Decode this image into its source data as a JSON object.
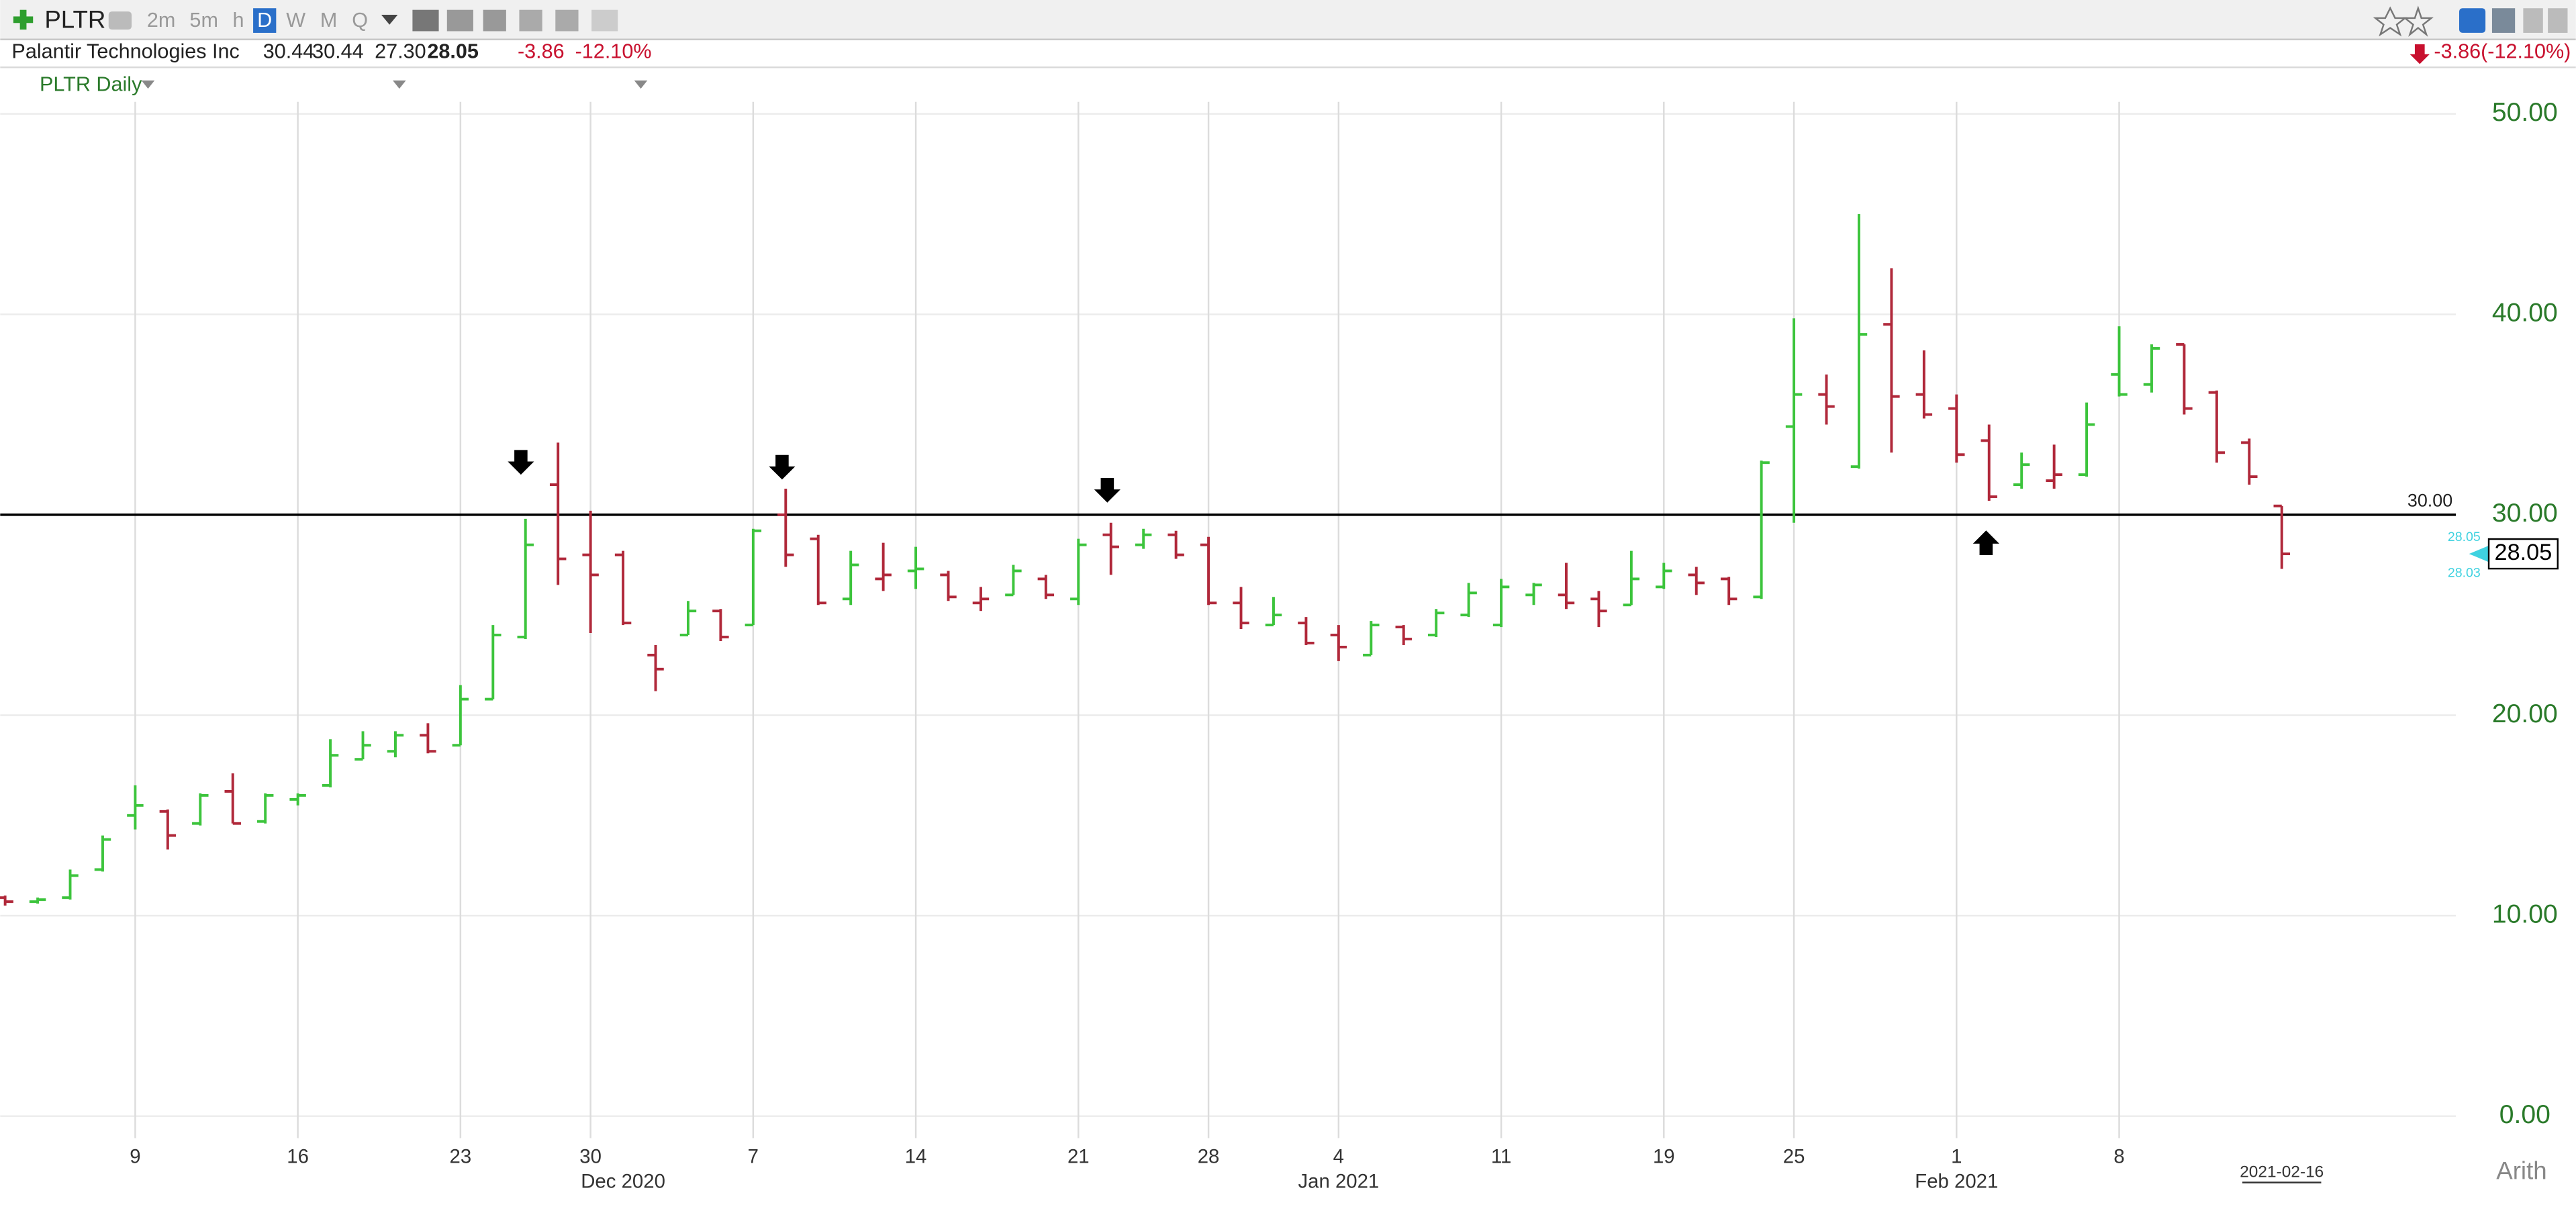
{
  "header": {
    "symbol": "PLTR",
    "intervals": [
      "2m",
      "5m",
      "h",
      "D",
      "W",
      "M",
      "Q"
    ],
    "active_interval": "D",
    "name": "Palantir Technologies Inc",
    "open": "30.44",
    "high": "30.44",
    "low": "27.30",
    "last": "28.05",
    "change": "-3.86",
    "change_pct": "-12.10%",
    "change_summary": "-3.86(-12.10%)",
    "scale_mode": "Arith"
  },
  "chart_data": {
    "type": "ohlc",
    "title": "PLTR Daily",
    "dates": [
      "2020-11-03",
      "2020-11-04",
      "2020-11-05",
      "2020-11-06",
      "2020-11-09",
      "2020-11-10",
      "2020-11-11",
      "2020-11-12",
      "2020-11-13",
      "2020-11-16",
      "2020-11-17",
      "2020-11-18",
      "2020-11-19",
      "2020-11-20",
      "2020-11-23",
      "2020-11-24",
      "2020-11-25",
      "2020-11-27",
      "2020-11-30",
      "2020-12-01",
      "2020-12-02",
      "2020-12-03",
      "2020-12-04",
      "2020-12-07",
      "2020-12-08",
      "2020-12-09",
      "2020-12-10",
      "2020-12-11",
      "2020-12-14",
      "2020-12-15",
      "2020-12-16",
      "2020-12-17",
      "2020-12-18",
      "2020-12-21",
      "2020-12-22",
      "2020-12-23",
      "2020-12-24",
      "2020-12-28",
      "2020-12-29",
      "2020-12-30",
      "2020-12-31",
      "2021-01-04",
      "2021-01-05",
      "2021-01-06",
      "2021-01-07",
      "2021-01-08",
      "2021-01-11",
      "2021-01-12",
      "2021-01-13",
      "2021-01-14",
      "2021-01-15",
      "2021-01-19",
      "2021-01-20",
      "2021-01-21",
      "2021-01-22",
      "2021-01-25",
      "2021-01-26",
      "2021-01-27",
      "2021-01-28",
      "2021-01-29",
      "2021-02-01",
      "2021-02-02",
      "2021-02-03",
      "2021-02-04",
      "2021-02-05",
      "2021-02-08",
      "2021-02-09",
      "2021-02-10",
      "2021-02-11",
      "2021-02-12",
      "2021-02-16"
    ],
    "open": [
      10.9,
      10.7,
      10.9,
      12.3,
      15.0,
      15.2,
      14.6,
      16.2,
      14.7,
      15.8,
      16.5,
      17.8,
      18.2,
      19.0,
      18.5,
      20.8,
      23.9,
      31.5,
      28.0,
      28.0,
      23.0,
      24.0,
      25.2,
      24.5,
      30.0,
      28.8,
      25.8,
      26.8,
      27.2,
      27.0,
      25.6,
      26.0,
      26.8,
      25.8,
      29.0,
      28.5,
      29.0,
      28.5,
      25.6,
      24.5,
      24.6,
      24.0,
      23.0,
      24.4,
      24.0,
      25.0,
      24.5,
      26.0,
      26.0,
      25.8,
      25.5,
      26.4,
      27.0,
      26.8,
      25.9,
      34.4,
      36.0,
      32.4,
      39.5,
      36.0,
      35.3,
      33.7,
      31.5,
      31.7,
      32.0,
      37.0,
      36.5,
      38.5,
      36.1,
      33.6,
      30.44
    ],
    "high": [
      11.0,
      10.9,
      12.3,
      14.0,
      16.5,
      15.3,
      16.1,
      17.1,
      16.1,
      16.1,
      18.8,
      19.2,
      19.2,
      19.6,
      21.5,
      24.5,
      29.8,
      33.6,
      30.2,
      28.2,
      23.5,
      25.7,
      25.3,
      29.3,
      31.3,
      29.0,
      28.2,
      28.6,
      28.4,
      27.2,
      26.4,
      27.5,
      27.0,
      28.8,
      29.6,
      29.3,
      29.2,
      28.9,
      26.4,
      25.9,
      24.9,
      24.5,
      24.7,
      24.5,
      25.3,
      26.6,
      26.8,
      26.6,
      27.6,
      26.2,
      28.2,
      27.6,
      27.4,
      26.9,
      32.7,
      39.8,
      37.0,
      45.0,
      42.3,
      38.2,
      36.0,
      34.5,
      33.1,
      33.5,
      35.6,
      39.4,
      38.5,
      38.5,
      36.2,
      33.8,
      30.44
    ],
    "low": [
      10.5,
      10.6,
      10.8,
      12.2,
      14.3,
      13.3,
      14.5,
      14.6,
      14.6,
      15.5,
      16.4,
      17.8,
      17.9,
      18.1,
      18.5,
      20.8,
      23.8,
      26.5,
      24.1,
      24.5,
      21.2,
      24.0,
      23.7,
      24.5,
      27.4,
      25.5,
      25.5,
      26.2,
      26.3,
      25.7,
      25.2,
      26.0,
      25.8,
      25.5,
      27.0,
      28.3,
      27.8,
      25.5,
      24.3,
      24.5,
      23.5,
      22.7,
      23.0,
      23.5,
      23.9,
      24.9,
      24.4,
      25.5,
      25.3,
      24.4,
      25.5,
      26.3,
      26.0,
      25.5,
      25.8,
      29.6,
      34.5,
      32.3,
      33.1,
      34.8,
      32.6,
      30.7,
      31.3,
      31.3,
      31.9,
      35.9,
      36.1,
      35.0,
      32.6,
      31.5,
      27.3
    ],
    "close": [
      10.7,
      10.8,
      12.0,
      13.8,
      15.5,
      14.0,
      16.0,
      14.6,
      16.0,
      16.0,
      18.0,
      18.5,
      19.0,
      18.2,
      20.8,
      24.0,
      28.5,
      27.8,
      27.0,
      24.6,
      22.3,
      25.2,
      23.9,
      29.2,
      28.0,
      25.6,
      27.5,
      27.0,
      27.3,
      25.9,
      25.8,
      27.2,
      26.0,
      28.5,
      28.4,
      29.0,
      28.0,
      25.6,
      24.6,
      25.0,
      23.6,
      23.4,
      24.5,
      23.8,
      25.1,
      26.1,
      26.4,
      26.5,
      25.6,
      25.2,
      26.8,
      27.2,
      26.6,
      25.8,
      32.6,
      36.0,
      35.4,
      39.0,
      35.9,
      35.0,
      33.0,
      30.9,
      32.5,
      32.0,
      34.5,
      36.0,
      38.3,
      35.3,
      33.1,
      31.9,
      28.05
    ],
    "up_color": "#3cc43c",
    "down_color": "#b0283a",
    "ylim": [
      -1.1,
      50.6
    ],
    "yticks": [
      {
        "value": 0,
        "label": "0.00"
      },
      {
        "value": 10,
        "label": "10.00"
      },
      {
        "value": 20,
        "label": "20.00"
      },
      {
        "value": 30,
        "label": "30.00"
      },
      {
        "value": 40,
        "label": "40.00"
      },
      {
        "value": 50,
        "label": "50.00"
      }
    ],
    "xticks": [
      {
        "value": "2020-11-09",
        "label": "9"
      },
      {
        "value": "2020-11-16",
        "label": "16"
      },
      {
        "value": "2020-11-23",
        "label": "23"
      },
      {
        "value": "2020-11-30",
        "label": "30"
      },
      {
        "value": "2020-12-07",
        "label": "7"
      },
      {
        "value": "2020-12-14",
        "label": "14"
      },
      {
        "value": "2020-12-21",
        "label": "21"
      },
      {
        "value": "2020-12-28",
        "label": "28"
      },
      {
        "value": "2021-01-04",
        "label": "4"
      },
      {
        "value": "2021-01-11",
        "label": "11"
      },
      {
        "value": "2021-01-19",
        "label": "19"
      },
      {
        "value": "2021-01-25",
        "label": "25"
      },
      {
        "value": "2021-02-01",
        "label": "1"
      },
      {
        "value": "2021-02-08",
        "label": "8"
      }
    ],
    "month_labels": [
      {
        "value": "2020-12-01",
        "label": "Dec 2020"
      },
      {
        "value": "2021-01-04",
        "label": "Jan 2021"
      },
      {
        "value": "2021-02-01",
        "label": "Feb 2021"
      }
    ],
    "last_date_label": "2021-02-16",
    "hline": {
      "value": 30,
      "label": "30.00"
    },
    "last_price": 28.05,
    "quote_labels": [
      "28.05",
      "28.03"
    ],
    "grid": true
  }
}
